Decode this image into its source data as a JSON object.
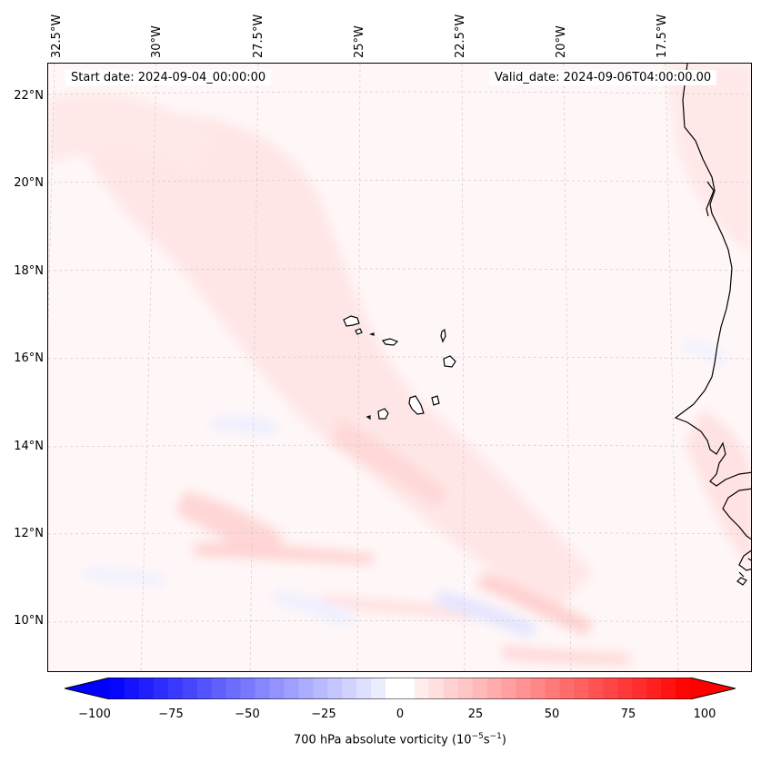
{
  "map": {
    "header_left": "Start date: 2024-09-04_00:00:00",
    "header_right": "Valid_date: 2024-09-06T04:00:00.00",
    "longitude_labels": [
      "32.5°W",
      "30°W",
      "27.5°W",
      "25°W",
      "22.5°W",
      "20°W",
      "17.5°W"
    ],
    "latitude_labels": [
      "22°N",
      "20°N",
      "18°N",
      "16°N",
      "14°N",
      "12°N",
      "10°N"
    ]
  },
  "colorbar": {
    "ticks": [
      "−100",
      "−75",
      "−50",
      "−25",
      "0",
      "25",
      "50",
      "75",
      "100"
    ],
    "label_main": "700 hPa absolute vorticity (10",
    "label_exp1": "−5",
    "label_mid": "s",
    "label_exp2": "−1",
    "label_end": ")",
    "min_color": "#0000ff",
    "zero_color": "#ffffff",
    "max_color": "#ff0000"
  }
}
